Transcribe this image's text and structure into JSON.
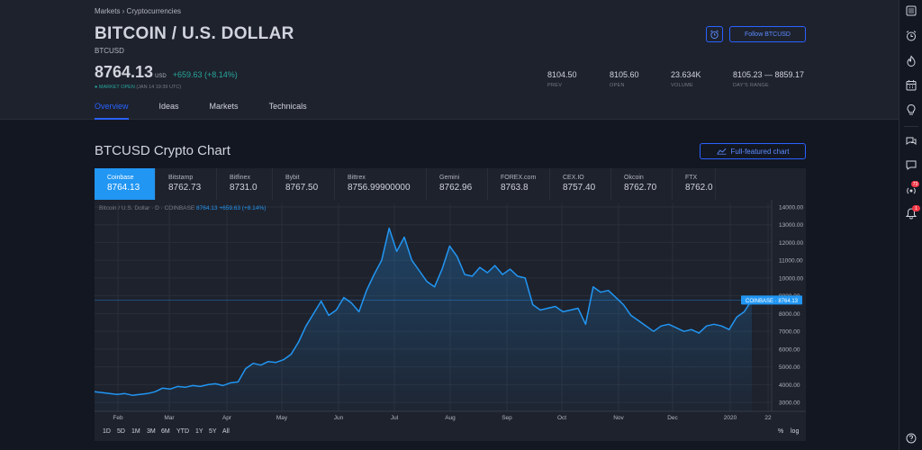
{
  "breadcrumb": "Markets › Cryptocurrencies",
  "title": "BITCOIN / U.S. DOLLAR",
  "ticker": "BTCUSD",
  "price": "8764.13",
  "currency": "USD",
  "change": "+659.63 (+8.14%)",
  "market_status": "MARKET OPEN",
  "market_time": "(JAN 14 19:39 UTC)",
  "stats": [
    {
      "value": "8104.50",
      "label": "PREV"
    },
    {
      "value": "8105.60",
      "label": "OPEN"
    },
    {
      "value": "23.634K",
      "label": "VOLUME"
    },
    {
      "value": "8105.23 — 8859.17",
      "label": "DAY'S RANGE"
    }
  ],
  "follow_label": "Follow BTCUSD",
  "tabs": [
    "Overview",
    "Ideas",
    "Markets",
    "Technicals"
  ],
  "section_title": "BTCUSD Crypto Chart",
  "full_chart_label": "Full-featured chart",
  "exchanges": [
    {
      "name": "Coinbase",
      "price": "8764.13"
    },
    {
      "name": "Bitstamp",
      "price": "8762.73"
    },
    {
      "name": "Bitfinex",
      "price": "8731.0"
    },
    {
      "name": "Bybit",
      "price": "8767.50"
    },
    {
      "name": "Bittrex",
      "price": "8756.99900000"
    },
    {
      "name": "Gemini",
      "price": "8762.96"
    },
    {
      "name": "FOREX.com",
      "price": "8763.8"
    },
    {
      "name": "CEX.IO",
      "price": "8757.40"
    },
    {
      "name": "Okcoin",
      "price": "8762.70"
    },
    {
      "name": "FTX",
      "price": "8762.0"
    }
  ],
  "legend": {
    "symbol": "Bitcoin / U.S. Dollar · D · COINBASE",
    "price": "8764.13 +659.63 (+8.14%)"
  },
  "price_tag": "COINBASE · 8764.13",
  "timeframes": [
    "1D",
    "5D",
    "1M",
    "3M",
    "6M",
    "YTD",
    "1Y",
    "5Y",
    "All"
  ],
  "scale_options": [
    "%",
    "log"
  ],
  "sidebar_badges": [
    "73",
    "1"
  ],
  "colors": {
    "accent": "#2962ff",
    "line": "#2196f3",
    "up": "#26a69a"
  },
  "chart_data": {
    "type": "area",
    "x_labels": [
      "Feb",
      "Mar",
      "Apr",
      "May",
      "Jun",
      "Jul",
      "Aug",
      "Sep",
      "Oct",
      "Nov",
      "Dec",
      "2020",
      "22"
    ],
    "y_ticks": [
      3000,
      4000,
      5000,
      6000,
      7000,
      8000,
      9000,
      10000,
      11000,
      12000,
      13000,
      14000
    ],
    "ylim": [
      2500,
      14200
    ],
    "y_tick_labels": [
      "3000.00",
      "4000.00",
      "5000.00",
      "6000.00",
      "7000.00",
      "8000.00",
      "9000.00",
      "10000.00",
      "11000.00",
      "12000.00",
      "13000.00",
      "14000.00"
    ],
    "current_price": 8764.13,
    "series": [
      {
        "values": [
          3600,
          3550,
          3500,
          3450,
          3500,
          3400,
          3450,
          3500,
          3600,
          3800,
          3750,
          3900,
          3850,
          3950,
          3900,
          4000,
          4050,
          3950,
          4100,
          4150,
          4900,
          5200,
          5100,
          5300,
          5250,
          5400,
          5700,
          6400,
          7300,
          8000,
          8700,
          7900,
          8200,
          8900,
          8600,
          8100,
          9300,
          10200,
          11000,
          12800,
          11500,
          12300,
          11000,
          10400,
          9800,
          9500,
          10500,
          11800,
          11200,
          10200,
          10100,
          10600,
          10300,
          10700,
          10200,
          10500,
          10100,
          10000,
          8500,
          8200,
          8300,
          8400,
          8100,
          8200,
          8300,
          7400,
          9500,
          9200,
          9300,
          8900,
          8500,
          7900,
          7600,
          7300,
          7000,
          7300,
          7400,
          7200,
          7000,
          7100,
          6900,
          7300,
          7400,
          7300,
          7100,
          7800,
          8100,
          8764
        ]
      }
    ]
  }
}
